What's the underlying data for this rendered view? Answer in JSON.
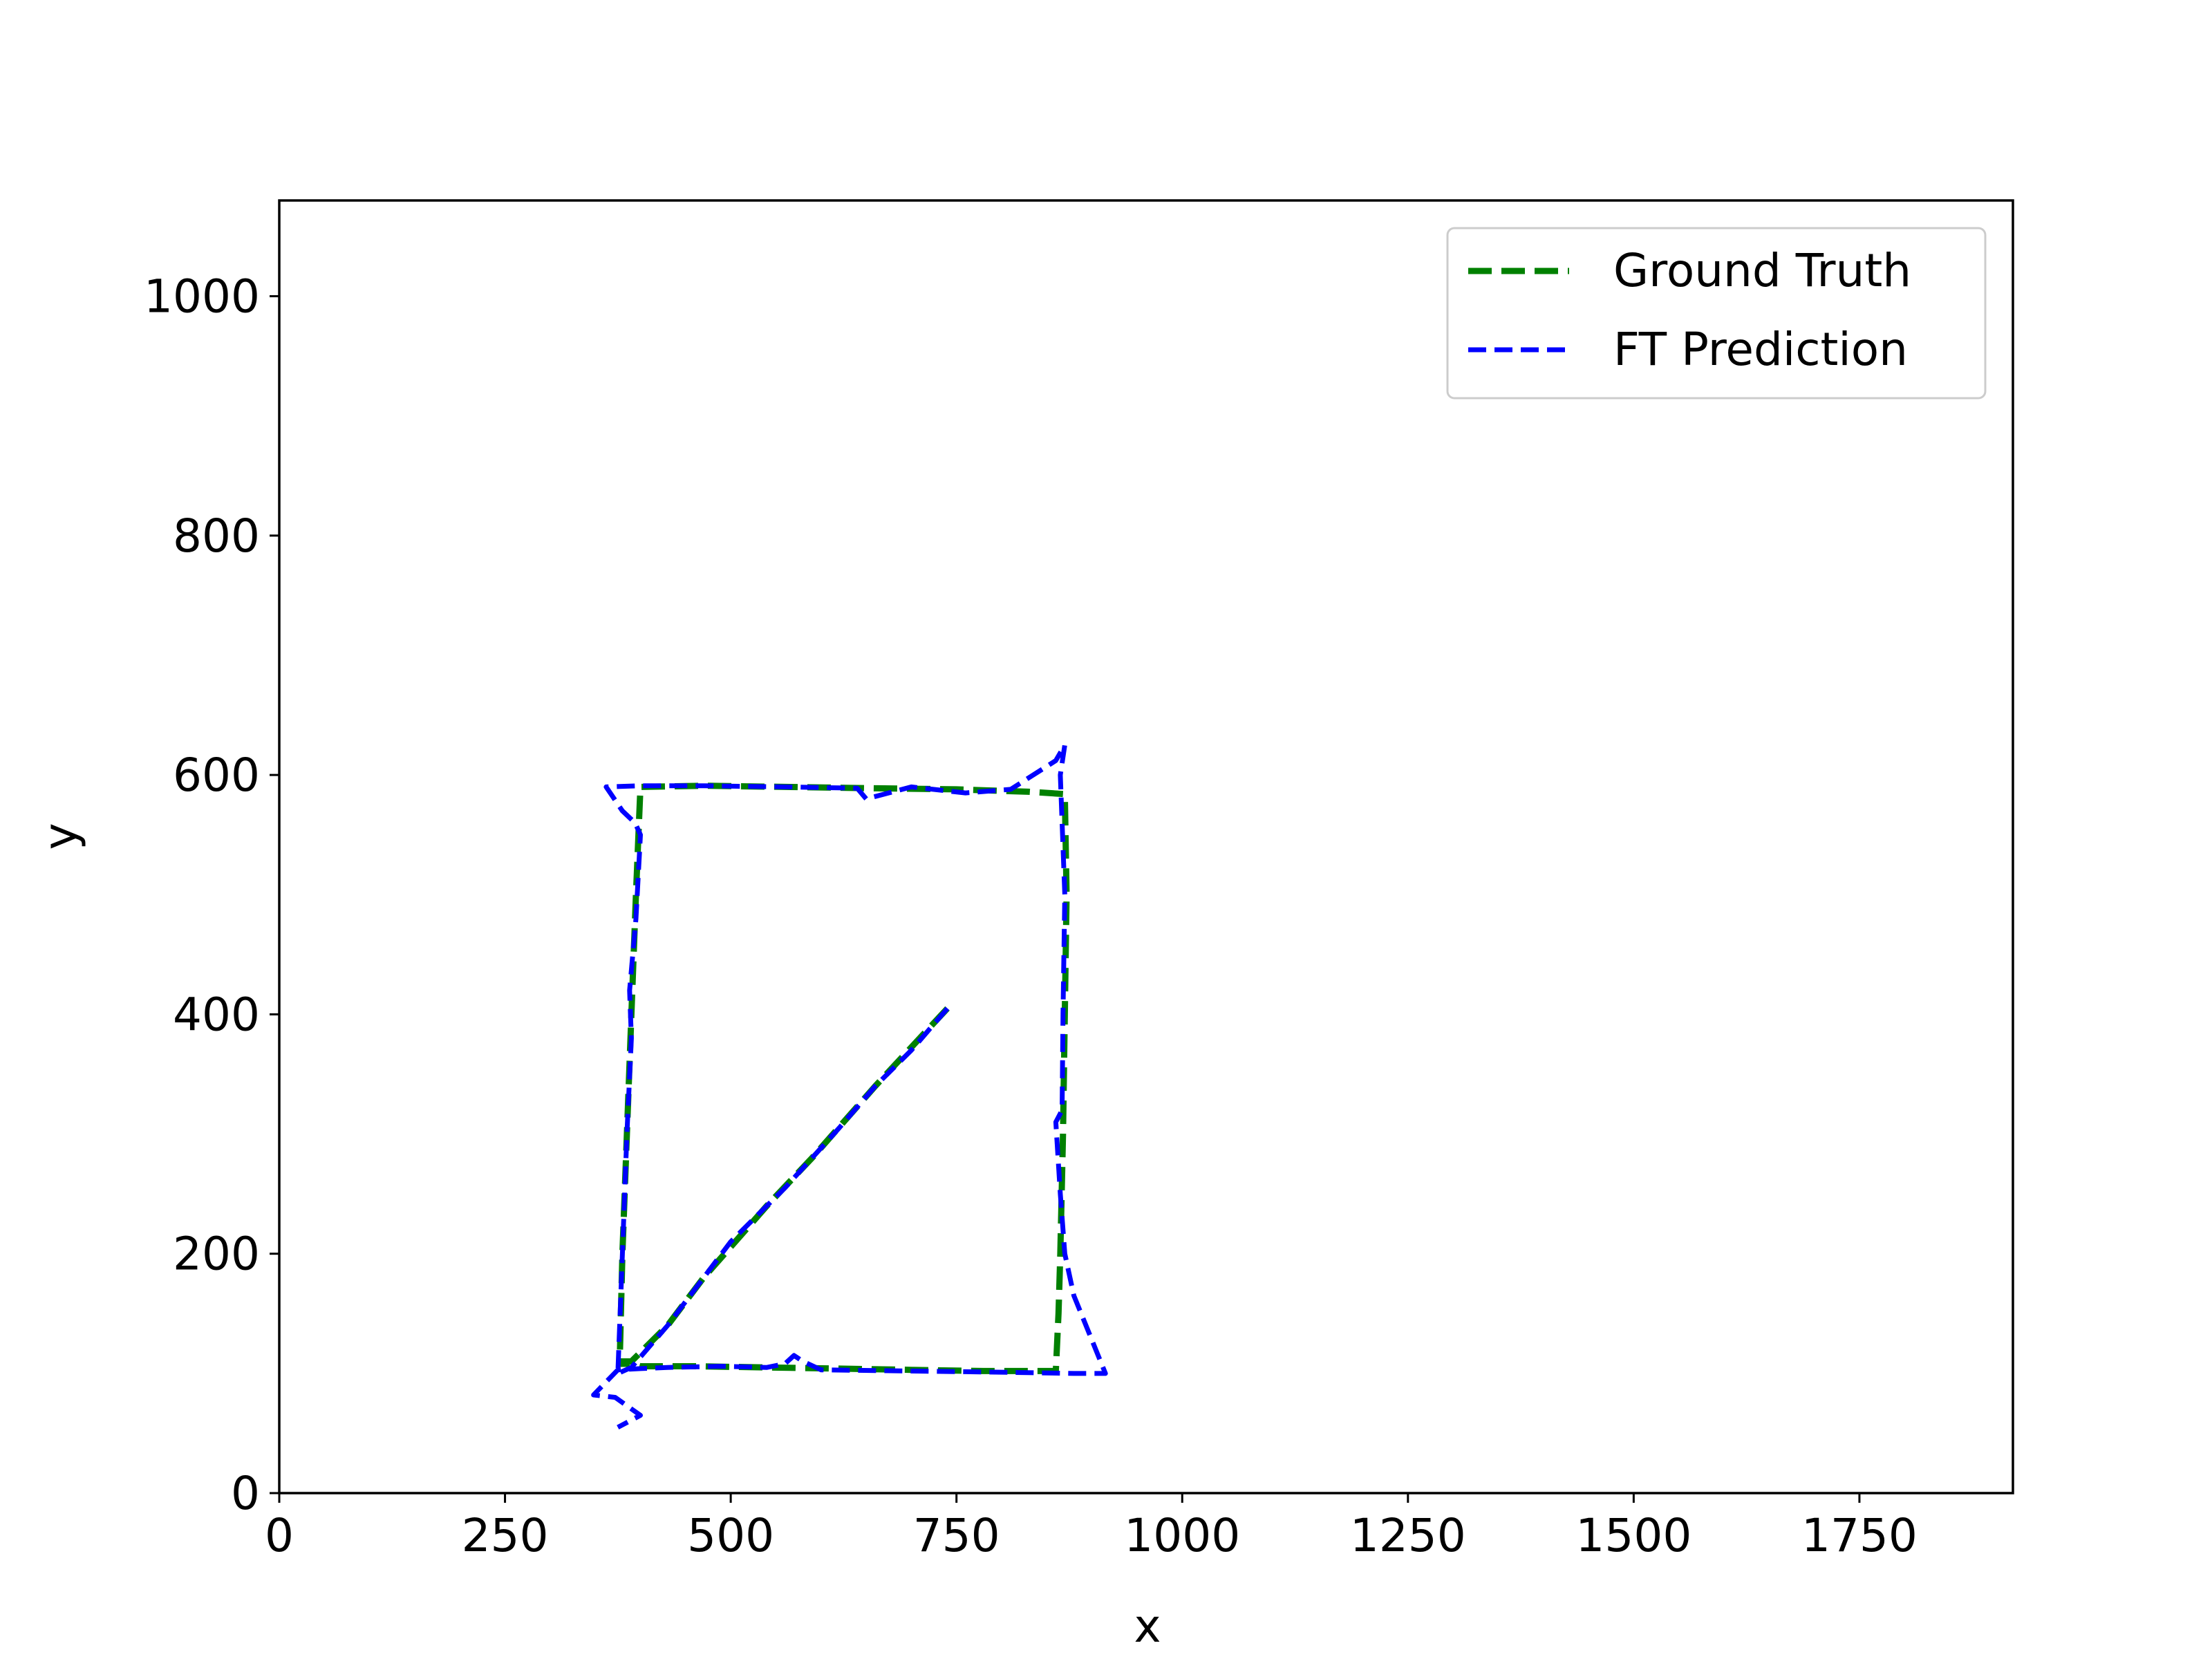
{
  "chart_data": {
    "type": "line",
    "title": "",
    "xlabel": "x",
    "ylabel": "y",
    "xlim": [
      0,
      1920
    ],
    "ylim": [
      0,
      1080
    ],
    "x_ticks": [
      0,
      250,
      500,
      750,
      1000,
      1250,
      1500,
      1750
    ],
    "y_ticks": [
      0,
      200,
      400,
      600,
      800,
      1000
    ],
    "x_tick_labels": [
      "0",
      "250",
      "500",
      "750",
      "1000",
      "1250",
      "1500",
      "1750"
    ],
    "y_tick_labels": [
      "0",
      "200",
      "400",
      "600",
      "800",
      "1000"
    ],
    "grid": false,
    "legend_position": "upper right",
    "series": [
      {
        "name": "Ground Truth",
        "color": "#008000",
        "style": "dashed",
        "x": [
          740,
          660,
          590,
          540,
          470,
          430,
          390,
          377,
          380,
          385,
          390,
          395,
          400,
          470,
          560,
          650,
          750,
          830,
          870,
          872,
          870,
          868,
          865,
          863,
          860,
          780,
          700,
          620,
          540,
          460,
          400,
          395,
          390,
          385,
          380,
          377
        ],
        "y": [
          405,
          340,
          280,
          240,
          180,
          140,
          110,
          110,
          200,
          300,
          400,
          500,
          590,
          591,
          590,
          589,
          588,
          586,
          584,
          500,
          400,
          300,
          200,
          150,
          102,
          102,
          103,
          104,
          105,
          106,
          106,
          107,
          107,
          108,
          108,
          108
        ]
      },
      {
        "name": "FT Prediction",
        "color": "#0000ff",
        "style": "dashed",
        "x": [
          740,
          700,
          660,
          620,
          590,
          560,
          540,
          500,
          470,
          430,
          390,
          375,
          380,
          385,
          390,
          388,
          395,
          400,
          394,
          380,
          362,
          400,
          470,
          560,
          640,
          650,
          700,
          760,
          810,
          860,
          870,
          865,
          870,
          868,
          867,
          860,
          865,
          870,
          880,
          915,
          880,
          800,
          700,
          600,
          580,
          570,
          560,
          540,
          490,
          430,
          400,
          375,
          348,
          372,
          400,
          375
        ],
        "y": [
          405,
          370,
          340,
          305,
          280,
          255,
          240,
          210,
          180,
          140,
          105,
          100,
          200,
          300,
          380,
          420,
          480,
          550,
          560,
          570,
          590,
          591,
          591,
          590,
          589,
          580,
          590,
          585,
          588,
          612,
          625,
          600,
          500,
          400,
          320,
          310,
          250,
          200,
          165,
          100,
          100,
          101,
          102,
          103,
          110,
          115,
          108,
          105,
          106,
          105,
          104,
          103,
          82,
          80,
          65,
          55
        ]
      }
    ]
  }
}
